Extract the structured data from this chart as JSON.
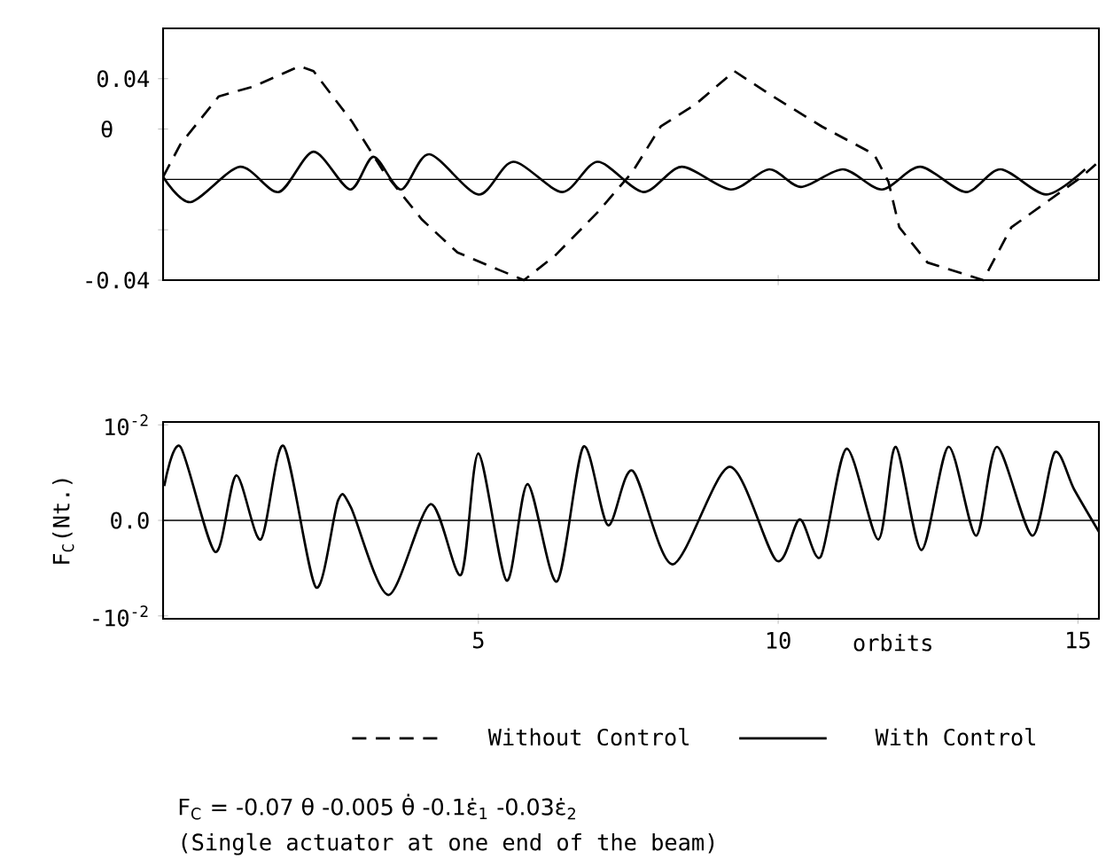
{
  "chart_data": [
    {
      "type": "line",
      "ylabel": "θ",
      "xlim": [
        -0.26,
        15.35
      ],
      "ylim": [
        -0.04,
        0.06
      ],
      "xticks": [
        {
          "value": 5,
          "label": null
        },
        {
          "value": 10,
          "label": null
        }
      ],
      "yticks": [
        -0.04,
        {
          "value": -0.02,
          "label": null
        },
        {
          "value": 0.02,
          "label": null
        },
        0.04
      ],
      "tick_labels": "y",
      "legend": "bottom",
      "ref_lines": [
        {
          "axis": "y",
          "value": 0
        }
      ],
      "series": [
        {
          "name": "Without Control",
          "color": "#000000",
          "line_style": "dashed",
          "x": [
            -0.26,
            0.03,
            0.67,
            1.26,
            2.02,
            2.25,
            2.89,
            3.42,
            4.06,
            4.65,
            5.35,
            5.76,
            6.29,
            6.99,
            7.57,
            8.04,
            8.63,
            9.27,
            9.91,
            10.73,
            11.6,
            11.84,
            12.02,
            12.49,
            13.42,
            13.89,
            14.36,
            15.06,
            15.3
          ],
          "values": [
            0.001,
            0.014,
            0.033,
            0.037,
            0.045,
            0.043,
            0.023,
            0.003,
            -0.016,
            -0.029,
            -0.036,
            -0.04,
            -0.03,
            -0.013,
            0.003,
            0.021,
            0.03,
            0.043,
            0.033,
            0.021,
            0.01,
            -0.001,
            -0.019,
            -0.033,
            -0.04,
            -0.019,
            -0.011,
            0.001,
            0.006
          ]
        },
        {
          "name": "With Control",
          "color": "#000000",
          "line_style": "solid",
          "x": [
            -0.26,
            0.2,
            1.02,
            1.67,
            2.25,
            2.86,
            3.25,
            3.71,
            4.18,
            5.0,
            5.58,
            6.4,
            6.99,
            7.75,
            8.39,
            9.21,
            9.85,
            10.38,
            11.08,
            11.73,
            12.37,
            13.13,
            13.71,
            14.47,
            15.12
          ],
          "values": [
            0.001,
            -0.009,
            0.005,
            -0.005,
            0.011,
            -0.004,
            0.009,
            -0.004,
            0.01,
            -0.006,
            0.007,
            -0.005,
            0.007,
            -0.005,
            0.005,
            -0.004,
            0.004,
            -0.003,
            0.004,
            -0.004,
            0.005,
            -0.005,
            0.004,
            -0.006,
            0.004
          ]
        }
      ]
    },
    {
      "type": "line",
      "ylabel": "F$_{C}$(Nt.)",
      "xlabel": "orbits",
      "xlim": [
        -0.26,
        15.35
      ],
      "ylim": [
        -0.0103,
        0.0103
      ],
      "xticks": [
        5,
        10,
        15
      ],
      "yticks": [
        {
          "value": -0.01,
          "label": "-10$^{-2}$"
        },
        {
          "value": 0,
          "label": "0.0"
        },
        {
          "value": 0.01,
          "label": "10$^{-2}$"
        }
      ],
      "ref_lines": [
        {
          "axis": "y",
          "value": 0
        }
      ],
      "series": [
        {
          "color": "#000000",
          "line_style": "solid",
          "x": [
            -0.24,
            0.03,
            0.61,
            0.96,
            1.37,
            1.75,
            2.29,
            2.66,
            2.87,
            3.5,
            4.2,
            4.71,
            5.0,
            5.47,
            5.82,
            6.31,
            6.75,
            7.16,
            7.57,
            8.24,
            9.19,
            9.97,
            10.36,
            10.71,
            11.14,
            11.67,
            11.96,
            12.39,
            12.84,
            13.3,
            13.65,
            14.24,
            14.61,
            14.94,
            15.35
          ],
          "values": [
            0.0036,
            0.0077,
            -0.0033,
            0.0047,
            -0.002,
            0.0078,
            -0.007,
            0.0021,
            0.0014,
            -0.0078,
            0.0017,
            -0.0057,
            0.007,
            -0.0063,
            0.0038,
            -0.0064,
            0.0077,
            -0.0005,
            0.0052,
            -0.0046,
            0.0056,
            -0.0042,
            0.0001,
            -0.0038,
            0.0075,
            -0.002,
            0.0077,
            -0.0031,
            0.0077,
            -0.0016,
            0.0077,
            -0.0016,
            0.0071,
            0.0032,
            -0.0012
          ]
        }
      ],
      "annotations": [
        "F$_{C}$ = -0.07 θ -0.005 θ̇ -0.1ε̇$_{1}$ -0.03ε̇$_{2}$",
        "(Single actuator at one end of the beam)"
      ]
    }
  ]
}
